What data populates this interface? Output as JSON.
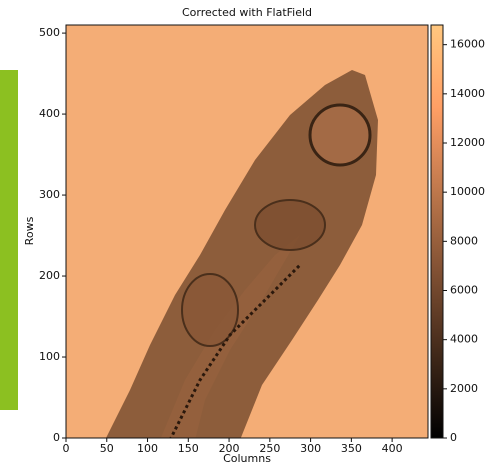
{
  "chart_data": {
    "type": "image",
    "title": "Corrected with FlatField",
    "xlabel": "Columns",
    "ylabel": "Rows",
    "xlim": [
      0,
      444
    ],
    "ylim": [
      0,
      510
    ],
    "xticks": [
      0,
      50,
      100,
      150,
      200,
      250,
      300,
      350,
      400
    ],
    "yticks": [
      0,
      100,
      200,
      300,
      400,
      500
    ],
    "colormap": "copper",
    "background": "#f4ad76",
    "colorbar": {
      "lim": [
        0,
        16800
      ],
      "ticks": [
        0,
        2000,
        4000,
        6000,
        8000,
        10000,
        12000,
        14000,
        16000
      ]
    }
  }
}
